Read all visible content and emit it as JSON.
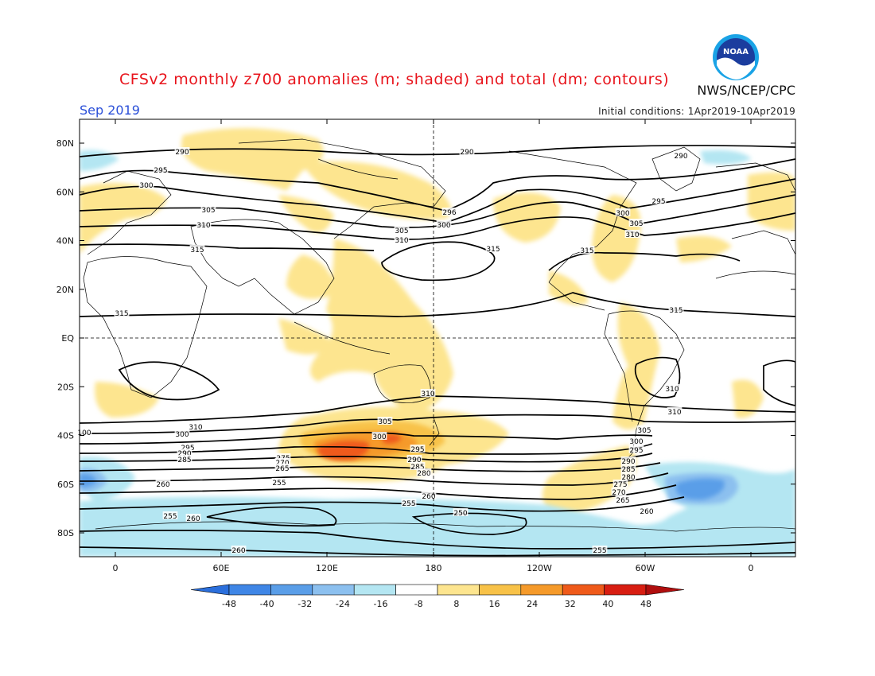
{
  "title": "CFSv2 monthly z700 anomalies (m; shaded) and total (dm; contours)",
  "agency": "NWS/NCEP/CPC",
  "logo_text": "NOAA",
  "month": "Sep 2019",
  "initial_conditions": "Initial conditions: 1Apr2019-10Apr2019",
  "lat_labels": [
    "80N",
    "60N",
    "40N",
    "20N",
    "EQ",
    "20S",
    "40S",
    "60S",
    "80S"
  ],
  "lon_labels": [
    "0",
    "60E",
    "120E",
    "180",
    "120W",
    "60W",
    "0"
  ],
  "colorbar": {
    "ticks": [
      "-48",
      "-40",
      "-32",
      "-24",
      "-16",
      "-8",
      "8",
      "16",
      "24",
      "32",
      "40",
      "48"
    ],
    "colors": [
      "#2b6fdc",
      "#3f86e6",
      "#5a9ee8",
      "#8cc0ef",
      "#b4e6f2",
      "#ffffff",
      "#fde58f",
      "#f8c248",
      "#f59a2a",
      "#ef5a1a",
      "#d81e12",
      "#b00e0e"
    ]
  },
  "contour_labels": [
    "290",
    "290",
    "290",
    "295",
    "300",
    "305",
    "310",
    "315",
    "296",
    "300",
    "305",
    "310",
    "315",
    "295",
    "300",
    "305",
    "310",
    "315",
    "315",
    "315",
    "310",
    "310",
    "310",
    "305",
    "300",
    "295",
    "290",
    "285",
    "280",
    "305",
    "300",
    "295",
    "290",
    "285",
    "280",
    "275",
    "270",
    "265",
    "260",
    "310",
    "300",
    "295",
    "290",
    "285",
    "275",
    "270",
    "265",
    "260",
    "255",
    "255",
    "255",
    "260",
    "260",
    "250",
    "260",
    "255",
    "100"
  ]
}
